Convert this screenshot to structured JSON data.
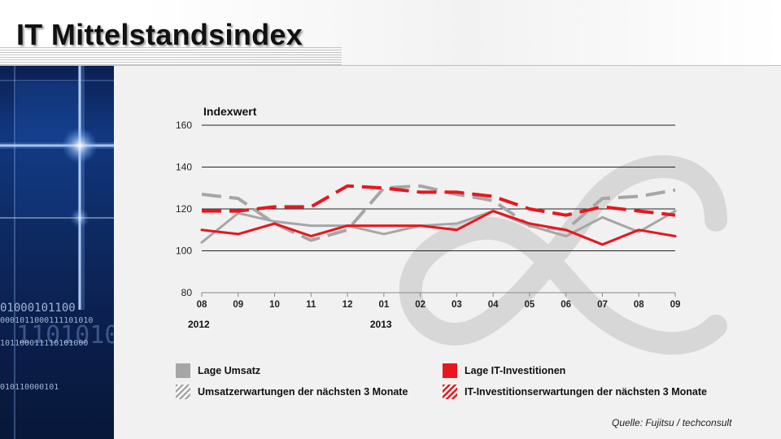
{
  "header": {
    "title": "IT Mittelstandsindex"
  },
  "side_panel": {
    "binary_lines": [
      "01000101100",
      "0001011000111101010",
      "1101010",
      "101100011110101000",
      "010110000101"
    ]
  },
  "chart_data": {
    "type": "line",
    "ylabel": "Indexwert",
    "ylim": [
      80,
      160
    ],
    "yticks": [
      80,
      100,
      120,
      140,
      160
    ],
    "categories": [
      "08",
      "09",
      "10",
      "11",
      "12",
      "01",
      "02",
      "03",
      "04",
      "05",
      "06",
      "07",
      "08",
      "09"
    ],
    "year_labels": [
      {
        "label": "2012",
        "category_index": 0
      },
      {
        "label": "2013",
        "category_index": 5
      }
    ],
    "series": [
      {
        "name": "Lage Umsatz",
        "color": "#a6a6a6",
        "dashed": false,
        "values": [
          104,
          118,
          114,
          112,
          112,
          108,
          112,
          113,
          119,
          112,
          107,
          116,
          109,
          119
        ]
      },
      {
        "name": "Umsatzerwartungen der nächsten 3 Monate",
        "color": "#a6a6a6",
        "dashed": true,
        "values": [
          127,
          125,
          113,
          105,
          110,
          130,
          131,
          127,
          124,
          112,
          110,
          125,
          126,
          129
        ]
      },
      {
        "name": "Lage IT-Investitionen",
        "color": "#e8161d",
        "dashed": false,
        "values": [
          110,
          108,
          113,
          107,
          112,
          112,
          112,
          110,
          119,
          113,
          110,
          103,
          110,
          107
        ]
      },
      {
        "name": "IT-Investitionserwartungen der nächsten 3 Monate",
        "color": "#e8161d",
        "dashed": true,
        "values": [
          119,
          119,
          121,
          121,
          131,
          130,
          128,
          128,
          126,
          120,
          117,
          121,
          119,
          117
        ]
      }
    ],
    "legend_placement": "bottom",
    "grid": true
  },
  "source": "Quelle: Fujitsu / techconsult"
}
